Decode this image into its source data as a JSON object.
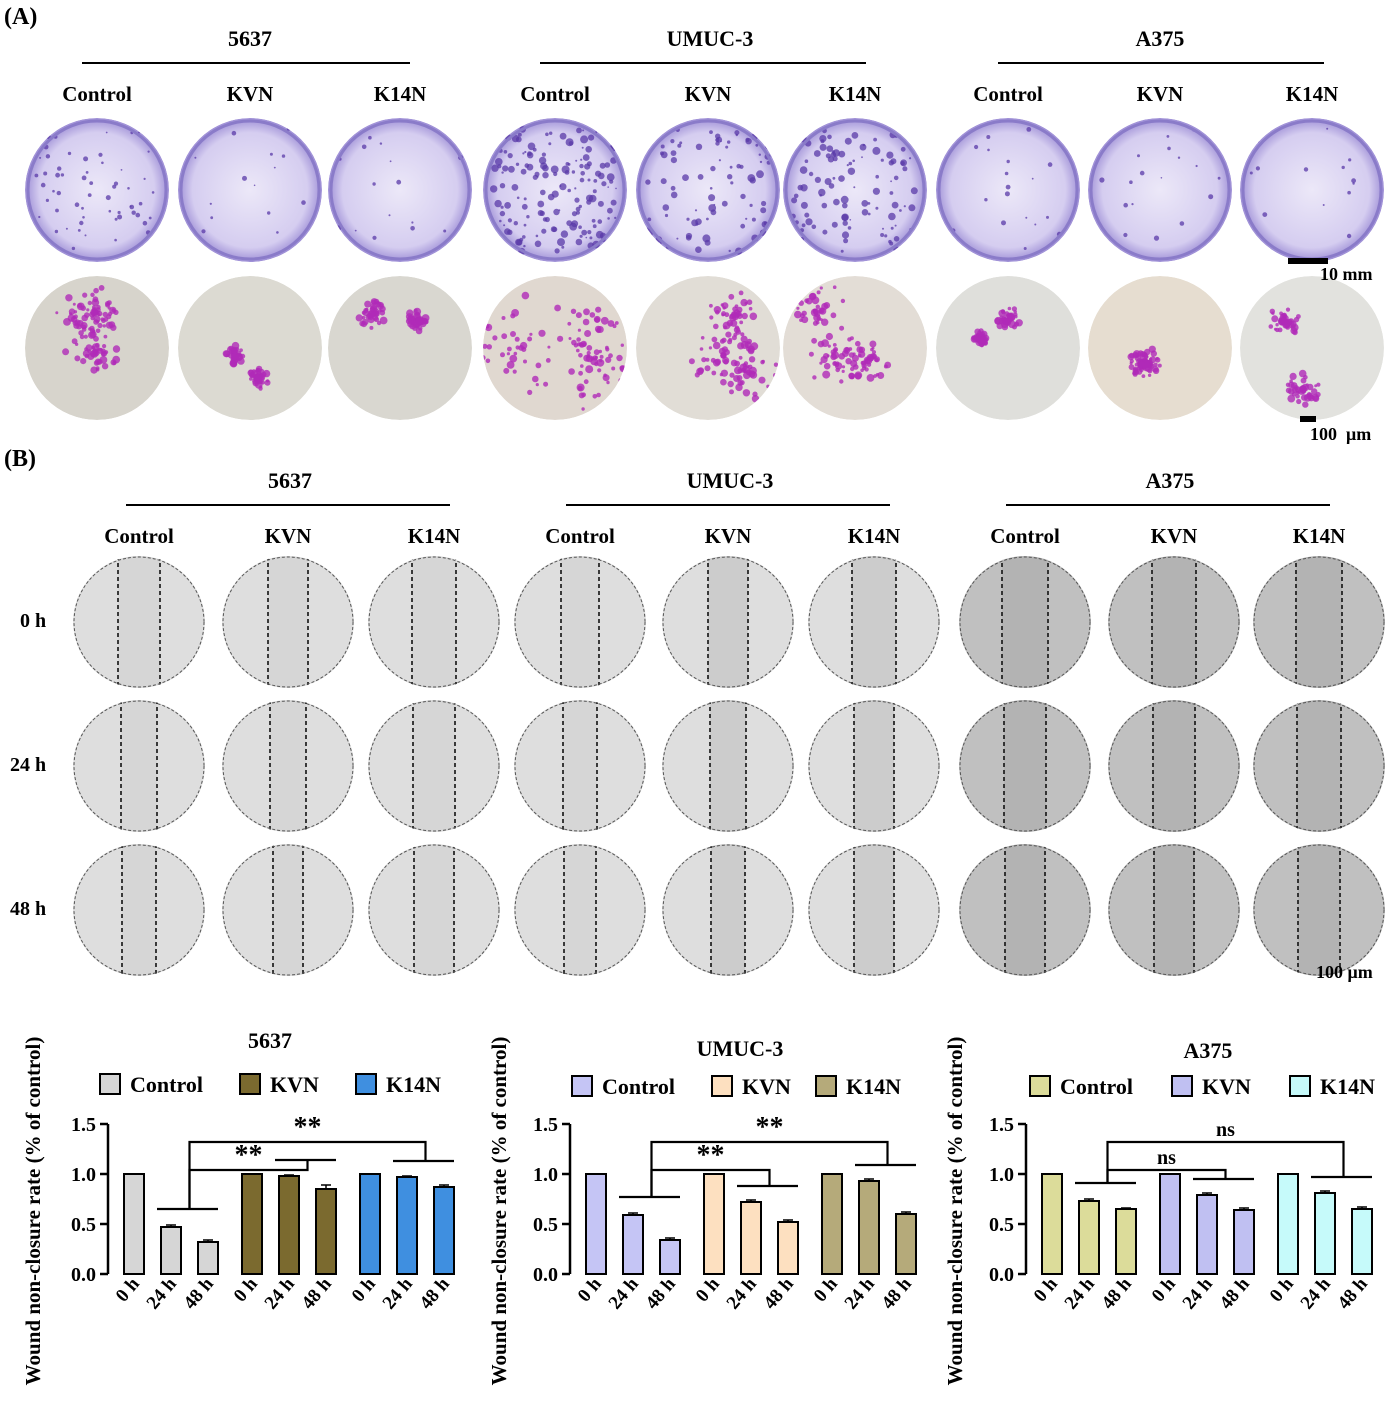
{
  "panel_a": {
    "label": "(A)",
    "cell_lines": [
      "5637",
      "UMUC-3",
      "A375"
    ],
    "conditions": [
      "Control",
      "KVN",
      "K14N",
      "Control",
      "KVN",
      "K14N",
      "Control",
      "KVN",
      "K14N"
    ],
    "scale_top": "10 mm",
    "scale_bottom": "100  μm"
  },
  "panel_b": {
    "label": "(B)",
    "cell_lines": [
      "5637",
      "UMUC-3",
      "A375"
    ],
    "conditions": [
      "Control",
      "KVN",
      "K14N",
      "Control",
      "KVN",
      "K14N",
      "Control",
      "KVN",
      "K14N"
    ],
    "times": [
      "0 h",
      "24 h",
      "48 h"
    ],
    "scale": "100 μm"
  },
  "chart_data": [
    {
      "type": "bar",
      "title": "5637",
      "ylabel": "Wound non-closure rate (% of control)",
      "ylim": [
        0,
        1.5
      ],
      "yticks": [
        "0.0",
        "0.5",
        "1.0",
        "1.5"
      ],
      "categories": [
        "0 h",
        "24 h",
        "48 h"
      ],
      "series": [
        {
          "name": "Control",
          "values": [
            1.0,
            0.47,
            0.32
          ],
          "errors": [
            0,
            0.02,
            0.02
          ],
          "color": "#d6d6d6"
        },
        {
          "name": "KVN",
          "values": [
            1.0,
            0.98,
            0.85
          ],
          "errors": [
            0,
            0.01,
            0.04
          ],
          "color": "#7b6a2f"
        },
        {
          "name": "K14N",
          "values": [
            1.0,
            0.97,
            0.87
          ],
          "errors": [
            0,
            0.01,
            0.02
          ],
          "color": "#3f8fe0"
        }
      ],
      "significance": [
        "**",
        "**"
      ],
      "legend": "top"
    },
    {
      "type": "bar",
      "title": "UMUC-3",
      "ylabel": "Wound non-closure rate (% of control)",
      "ylim": [
        0,
        1.5
      ],
      "yticks": [
        "0.0",
        "0.5",
        "1.0",
        "1.5"
      ],
      "categories": [
        "0 h",
        "24 h",
        "48 h"
      ],
      "series": [
        {
          "name": "Control",
          "values": [
            1.0,
            0.59,
            0.34
          ],
          "errors": [
            0,
            0.02,
            0.02
          ],
          "color": "#c5c5f5"
        },
        {
          "name": "KVN",
          "values": [
            1.0,
            0.72,
            0.52
          ],
          "errors": [
            0,
            0.02,
            0.02
          ],
          "color": "#fde0c0"
        },
        {
          "name": "K14N",
          "values": [
            1.0,
            0.93,
            0.6
          ],
          "errors": [
            0,
            0.02,
            0.02
          ],
          "color": "#b5aa7a"
        }
      ],
      "significance": [
        "**",
        "**"
      ],
      "legend": "top"
    },
    {
      "type": "bar",
      "title": "A375",
      "ylabel": "Wound non-closure rate (% of control)",
      "ylim": [
        0,
        1.5
      ],
      "yticks": [
        "0.0",
        "0.5",
        "1.0",
        "1.5"
      ],
      "categories": [
        "0 h",
        "24 h",
        "48 h"
      ],
      "series": [
        {
          "name": "Control",
          "values": [
            1.0,
            0.73,
            0.65
          ],
          "errors": [
            0,
            0.02,
            0.01
          ],
          "color": "#dcdc9a"
        },
        {
          "name": "KVN",
          "values": [
            1.0,
            0.79,
            0.64
          ],
          "errors": [
            0,
            0.02,
            0.02
          ],
          "color": "#c0c0f2"
        },
        {
          "name": "K14N",
          "values": [
            1.0,
            0.81,
            0.65
          ],
          "errors": [
            0,
            0.02,
            0.02
          ],
          "color": "#c6fafa"
        }
      ],
      "significance": [
        "ns",
        "ns"
      ],
      "legend": "top"
    }
  ]
}
